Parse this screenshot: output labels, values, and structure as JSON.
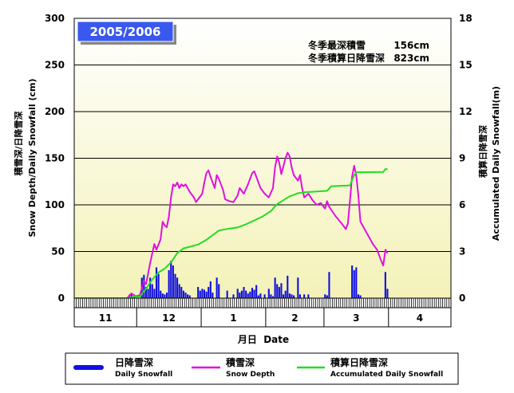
{
  "chart_data": {
    "type": "bar+line",
    "season_label": "2005/2006",
    "stats": [
      {
        "label": "冬季最深積雪",
        "value": "156cm"
      },
      {
        "label": "冬季積算日降雪深",
        "value": "823cm"
      }
    ],
    "left_axis": {
      "label_jp": "積雪深/日降雪深",
      "label_en": "Snow Depth/Daily Snowfall (cm)",
      "min": 0,
      "max": 300,
      "ticks": [
        0,
        50,
        100,
        150,
        200,
        250,
        300
      ]
    },
    "right_axis": {
      "label_jp": "積算日降雪深",
      "label_en": "Accumulated Daily Snowfall(m)",
      "min": 0,
      "max": 18,
      "ticks": [
        0,
        3,
        6,
        9,
        12,
        15,
        18
      ]
    },
    "x_axis": {
      "label": "月日  Date",
      "start_date": "2005-11-01",
      "end_date": "2006-04-30",
      "months": [
        "11",
        "12",
        "1",
        "2",
        "3",
        "4"
      ]
    },
    "legend": [
      {
        "name": "日降雪深",
        "sub": "Daily Snowfall",
        "color": "#1010e0"
      },
      {
        "name": "積雪深",
        "sub": "Snow Depth",
        "color": "#e010e0"
      },
      {
        "name": "積算日降雪深",
        "sub": "Accumulated Daily Snowfall",
        "color": "#22dd22"
      }
    ],
    "series": [
      {
        "name": "日降雪深",
        "color": "#1010e0",
        "kind": "bar",
        "axis": "left",
        "points": [
          [
            "2005-11-27",
            3
          ],
          [
            "2005-11-28",
            4
          ],
          [
            "2005-11-29",
            2
          ],
          [
            "2005-12-03",
            22
          ],
          [
            "2005-12-04",
            25
          ],
          [
            "2005-12-05",
            12
          ],
          [
            "2005-12-06",
            10
          ],
          [
            "2005-12-07",
            22
          ],
          [
            "2005-12-08",
            15
          ],
          [
            "2005-12-09",
            10
          ],
          [
            "2005-12-10",
            33
          ],
          [
            "2005-12-11",
            26
          ],
          [
            "2005-12-12",
            8
          ],
          [
            "2005-12-13",
            5
          ],
          [
            "2005-12-14",
            4
          ],
          [
            "2005-12-15",
            6
          ],
          [
            "2005-12-16",
            30
          ],
          [
            "2005-12-17",
            40
          ],
          [
            "2005-12-18",
            35
          ],
          [
            "2005-12-19",
            26
          ],
          [
            "2005-12-20",
            22
          ],
          [
            "2005-12-21",
            15
          ],
          [
            "2005-12-22",
            12
          ],
          [
            "2005-12-23",
            8
          ],
          [
            "2005-12-24",
            6
          ],
          [
            "2005-12-25",
            4
          ],
          [
            "2005-12-26",
            3
          ],
          [
            "2005-12-30",
            12
          ],
          [
            "2005-12-31",
            8
          ],
          [
            "2006-01-01",
            10
          ],
          [
            "2006-01-02",
            9
          ],
          [
            "2006-01-03",
            7
          ],
          [
            "2006-01-04",
            12
          ],
          [
            "2006-01-05",
            18
          ],
          [
            "2006-01-06",
            6
          ],
          [
            "2006-01-08",
            22
          ],
          [
            "2006-01-09",
            15
          ],
          [
            "2006-01-13",
            8
          ],
          [
            "2006-01-16",
            4
          ],
          [
            "2006-01-18",
            10
          ],
          [
            "2006-01-19",
            6
          ],
          [
            "2006-01-20",
            8
          ],
          [
            "2006-01-21",
            12
          ],
          [
            "2006-01-22",
            8
          ],
          [
            "2006-01-23",
            5
          ],
          [
            "2006-01-24",
            7
          ],
          [
            "2006-01-25",
            11
          ],
          [
            "2006-01-26",
            9
          ],
          [
            "2006-01-27",
            14
          ],
          [
            "2006-01-28",
            3
          ],
          [
            "2006-01-29",
            5
          ],
          [
            "2006-01-31",
            4
          ],
          [
            "2006-02-02",
            10
          ],
          [
            "2006-02-03",
            4
          ],
          [
            "2006-02-04",
            2
          ],
          [
            "2006-02-05",
            22
          ],
          [
            "2006-02-06",
            15
          ],
          [
            "2006-02-07",
            12
          ],
          [
            "2006-02-08",
            16
          ],
          [
            "2006-02-09",
            4
          ],
          [
            "2006-02-10",
            8
          ],
          [
            "2006-02-11",
            24
          ],
          [
            "2006-02-12",
            5
          ],
          [
            "2006-02-13",
            4
          ],
          [
            "2006-02-14",
            3
          ],
          [
            "2006-02-16",
            22
          ],
          [
            "2006-02-17",
            4
          ],
          [
            "2006-02-19",
            4
          ],
          [
            "2006-02-21",
            4
          ],
          [
            "2006-03-01",
            4
          ],
          [
            "2006-03-02",
            3
          ],
          [
            "2006-03-03",
            28
          ],
          [
            "2006-03-14",
            35
          ],
          [
            "2006-03-15",
            30
          ],
          [
            "2006-03-16",
            33
          ],
          [
            "2006-03-17",
            4
          ],
          [
            "2006-03-18",
            3
          ],
          [
            "2006-03-30",
            28
          ],
          [
            "2006-03-31",
            10
          ]
        ]
      },
      {
        "name": "積雪深",
        "color": "#e010e0",
        "kind": "line",
        "axis": "left",
        "points": [
          [
            "2005-11-01",
            0
          ],
          [
            "2005-11-26",
            0
          ],
          [
            "2005-11-27",
            3
          ],
          [
            "2005-11-28",
            5
          ],
          [
            "2005-11-30",
            2
          ],
          [
            "2005-12-02",
            3
          ],
          [
            "2005-12-04",
            18
          ],
          [
            "2005-12-05",
            15
          ],
          [
            "2005-12-07",
            38
          ],
          [
            "2005-12-09",
            58
          ],
          [
            "2005-12-10",
            52
          ],
          [
            "2005-12-12",
            63
          ],
          [
            "2005-12-13",
            82
          ],
          [
            "2005-12-14",
            78
          ],
          [
            "2005-12-15",
            76
          ],
          [
            "2005-12-16",
            88
          ],
          [
            "2005-12-17",
            108
          ],
          [
            "2005-12-18",
            122
          ],
          [
            "2005-12-19",
            120
          ],
          [
            "2005-12-20",
            124
          ],
          [
            "2005-12-21",
            118
          ],
          [
            "2005-12-22",
            122
          ],
          [
            "2005-12-23",
            120
          ],
          [
            "2005-12-24",
            122
          ],
          [
            "2005-12-26",
            114
          ],
          [
            "2005-12-28",
            108
          ],
          [
            "2005-12-29",
            103
          ],
          [
            "2005-12-30",
            106
          ],
          [
            "2006-01-01",
            112
          ],
          [
            "2006-01-02",
            124
          ],
          [
            "2006-01-03",
            134
          ],
          [
            "2006-01-04",
            137
          ],
          [
            "2006-01-05",
            130
          ],
          [
            "2006-01-07",
            118
          ],
          [
            "2006-01-08",
            132
          ],
          [
            "2006-01-09",
            128
          ],
          [
            "2006-01-11",
            116
          ],
          [
            "2006-01-12",
            106
          ],
          [
            "2006-01-14",
            104
          ],
          [
            "2006-01-16",
            103
          ],
          [
            "2006-01-18",
            110
          ],
          [
            "2006-01-19",
            118
          ],
          [
            "2006-01-21",
            112
          ],
          [
            "2006-01-23",
            122
          ],
          [
            "2006-01-25",
            134
          ],
          [
            "2006-01-26",
            136
          ],
          [
            "2006-01-28",
            124
          ],
          [
            "2006-01-29",
            118
          ],
          [
            "2006-01-31",
            112
          ],
          [
            "2006-02-02",
            108
          ],
          [
            "2006-02-04",
            118
          ],
          [
            "2006-02-05",
            140
          ],
          [
            "2006-02-06",
            152
          ],
          [
            "2006-02-07",
            145
          ],
          [
            "2006-02-08",
            133
          ],
          [
            "2006-02-10",
            150
          ],
          [
            "2006-02-11",
            156
          ],
          [
            "2006-02-12",
            152
          ],
          [
            "2006-02-13",
            140
          ],
          [
            "2006-02-14",
            132
          ],
          [
            "2006-02-16",
            126
          ],
          [
            "2006-02-17",
            132
          ],
          [
            "2006-02-18",
            118
          ],
          [
            "2006-02-19",
            108
          ],
          [
            "2006-02-21",
            112
          ],
          [
            "2006-02-23",
            105
          ],
          [
            "2006-02-25",
            100
          ],
          [
            "2006-02-27",
            102
          ],
          [
            "2006-03-01",
            96
          ],
          [
            "2006-03-02",
            104
          ],
          [
            "2006-03-03",
            98
          ],
          [
            "2006-03-06",
            88
          ],
          [
            "2006-03-09",
            80
          ],
          [
            "2006-03-11",
            74
          ],
          [
            "2006-03-12",
            80
          ],
          [
            "2006-03-13",
            105
          ],
          [
            "2006-03-14",
            130
          ],
          [
            "2006-03-15",
            142
          ],
          [
            "2006-03-16",
            132
          ],
          [
            "2006-03-17",
            110
          ],
          [
            "2006-03-18",
            82
          ],
          [
            "2006-03-21",
            70
          ],
          [
            "2006-03-24",
            58
          ],
          [
            "2006-03-26",
            52
          ],
          [
            "2006-03-28",
            40
          ],
          [
            "2006-03-29",
            35
          ],
          [
            "2006-03-30",
            52
          ],
          [
            "2006-03-31",
            48
          ]
        ]
      },
      {
        "name": "積算日降雪深",
        "color": "#22dd22",
        "kind": "line",
        "axis": "right",
        "points": [
          [
            "2005-11-01",
            0
          ],
          [
            "2005-11-26",
            0
          ],
          [
            "2005-11-29",
            0.08
          ],
          [
            "2005-12-02",
            0.1
          ],
          [
            "2005-12-05",
            0.6
          ],
          [
            "2005-12-08",
            1.2
          ],
          [
            "2005-12-11",
            1.65
          ],
          [
            "2005-12-14",
            1.9
          ],
          [
            "2005-12-17",
            2.3
          ],
          [
            "2005-12-20",
            2.9
          ],
          [
            "2005-12-23",
            3.2
          ],
          [
            "2005-12-26",
            3.3
          ],
          [
            "2005-12-30",
            3.45
          ],
          [
            "2006-01-03",
            3.75
          ],
          [
            "2006-01-06",
            4.05
          ],
          [
            "2006-01-09",
            4.35
          ],
          [
            "2006-01-13",
            4.45
          ],
          [
            "2006-01-18",
            4.55
          ],
          [
            "2006-01-22",
            4.75
          ],
          [
            "2006-01-26",
            5.0
          ],
          [
            "2006-01-30",
            5.25
          ],
          [
            "2006-02-03",
            5.6
          ],
          [
            "2006-02-06",
            6.05
          ],
          [
            "2006-02-09",
            6.3
          ],
          [
            "2006-02-12",
            6.55
          ],
          [
            "2006-02-16",
            6.75
          ],
          [
            "2006-02-20",
            6.82
          ],
          [
            "2006-02-25",
            6.86
          ],
          [
            "2006-03-02",
            6.9
          ],
          [
            "2006-03-04",
            7.2
          ],
          [
            "2006-03-13",
            7.25
          ],
          [
            "2006-03-14",
            7.6
          ],
          [
            "2006-03-15",
            7.9
          ],
          [
            "2006-03-16",
            8.1
          ],
          [
            "2006-03-29",
            8.12
          ],
          [
            "2006-03-30",
            8.3
          ],
          [
            "2006-03-31",
            8.3
          ]
        ]
      }
    ]
  }
}
